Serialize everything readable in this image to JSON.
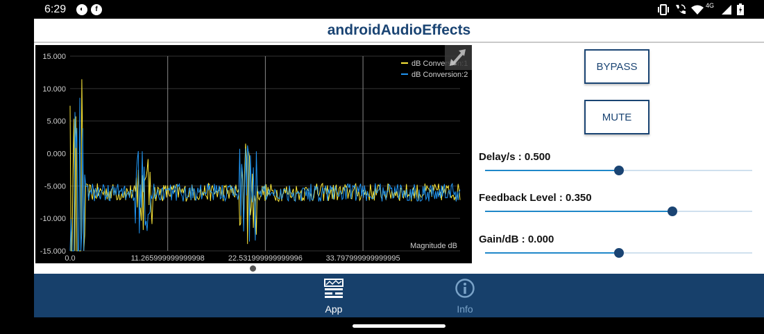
{
  "status_bar": {
    "time": "6:29",
    "network": "4G",
    "icons": [
      "app-notification-icon",
      "f-notification-icon",
      "vibrate-icon",
      "wifi-calling-icon",
      "wifi-icon",
      "signal-icon",
      "battery-icon"
    ]
  },
  "app": {
    "title": "androidAudioEffects"
  },
  "chart_data": {
    "type": "line",
    "xlabel": "Magnitude dB",
    "ylim": [
      -15,
      15
    ],
    "xlim": [
      0,
      45
    ],
    "y_ticks": [
      "15.000",
      "10.000",
      "5.000",
      "0.000",
      "-5.000",
      "-10.000",
      "-15.000"
    ],
    "x_ticks": [
      "0.0",
      "11.265999999999998",
      "22.531999999999996",
      "33.797999999999995"
    ],
    "x_tick_values": [
      0,
      11.266,
      22.532,
      33.798
    ],
    "grid": true,
    "legend_placement": "top-right",
    "series": [
      {
        "name": "dB Conversion:1",
        "color": "#ffeb3b"
      },
      {
        "name": "dB Conversion:2",
        "color": "#2196f3"
      }
    ]
  },
  "controls": {
    "bypass_label": "BYPASS",
    "mute_label": "MUTE",
    "sliders": [
      {
        "label": "Delay/s : 0.500",
        "value": 0.5
      },
      {
        "label": "Feedback Level : 0.350",
        "value": 0.7
      },
      {
        "label": "Gain/dB : 0.000",
        "value": 0.5
      }
    ]
  },
  "nav": {
    "items": [
      {
        "label": "App",
        "active": true
      },
      {
        "label": "Info",
        "active": false
      }
    ]
  },
  "colors": {
    "primary": "#1a4473",
    "accent": "#1f87c9",
    "nav_bg": "#17406b"
  }
}
